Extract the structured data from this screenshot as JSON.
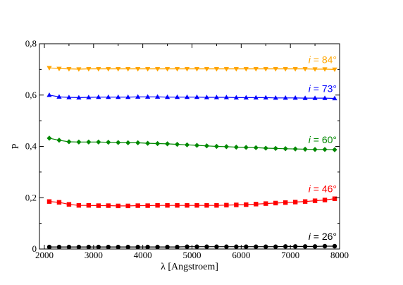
{
  "chart_data": {
    "type": "line",
    "xlabel": "λ [Angstroem]",
    "ylabel": "P",
    "xlim": [
      1900,
      8000
    ],
    "ylim": [
      0,
      0.8
    ],
    "xticks": [
      2000,
      3000,
      4000,
      5000,
      6000,
      7000,
      8000
    ],
    "xtick_labels": [
      "2000",
      "3000",
      "4000",
      "5000",
      "6000",
      "7000",
      "8000"
    ],
    "yticks": [
      0,
      0.2,
      0.4,
      0.6,
      0.8
    ],
    "ytick_labels": [
      "0",
      "0,2",
      "0,4",
      "0,6",
      "0,8"
    ],
    "grid": false,
    "x": [
      2100,
      2300,
      2500,
      2700,
      2900,
      3100,
      3300,
      3500,
      3700,
      3900,
      4100,
      4300,
      4500,
      4700,
      4900,
      5100,
      5300,
      5500,
      5700,
      5900,
      6100,
      6300,
      6500,
      6700,
      6900,
      7100,
      7300,
      7500,
      7700,
      7900
    ],
    "series": [
      {
        "label_var": "i",
        "label_value": " = 84°",
        "color": "#ffa500",
        "marker": "triangle-down",
        "values": [
          0.706,
          0.703,
          0.702,
          0.701,
          0.702,
          0.702,
          0.702,
          0.702,
          0.702,
          0.702,
          0.702,
          0.702,
          0.702,
          0.702,
          0.702,
          0.702,
          0.702,
          0.702,
          0.702,
          0.702,
          0.702,
          0.702,
          0.702,
          0.702,
          0.702,
          0.702,
          0.702,
          0.701,
          0.701,
          0.7
        ]
      },
      {
        "label_var": "i",
        "label_value": " = 73°",
        "color": "#0000ff",
        "marker": "triangle-up",
        "values": [
          0.6,
          0.593,
          0.591,
          0.59,
          0.591,
          0.592,
          0.592,
          0.592,
          0.592,
          0.593,
          0.593,
          0.593,
          0.592,
          0.592,
          0.592,
          0.592,
          0.591,
          0.591,
          0.591,
          0.59,
          0.59,
          0.59,
          0.59,
          0.589,
          0.589,
          0.589,
          0.588,
          0.588,
          0.588,
          0.587
        ]
      },
      {
        "label_var": "i",
        "label_value": " = 60°",
        "color": "#008800",
        "marker": "diamond",
        "values": [
          0.432,
          0.424,
          0.418,
          0.417,
          0.417,
          0.417,
          0.416,
          0.415,
          0.414,
          0.414,
          0.412,
          0.411,
          0.41,
          0.408,
          0.406,
          0.404,
          0.402,
          0.4,
          0.399,
          0.397,
          0.396,
          0.395,
          0.393,
          0.392,
          0.391,
          0.39,
          0.389,
          0.388,
          0.388,
          0.387
        ]
      },
      {
        "label_var": "i",
        "label_value": " = 46°",
        "color": "#ff0000",
        "marker": "square",
        "values": [
          0.185,
          0.182,
          0.174,
          0.17,
          0.17,
          0.169,
          0.169,
          0.168,
          0.168,
          0.169,
          0.169,
          0.17,
          0.17,
          0.17,
          0.17,
          0.17,
          0.17,
          0.17,
          0.171,
          0.172,
          0.173,
          0.175,
          0.177,
          0.179,
          0.181,
          0.183,
          0.185,
          0.188,
          0.191,
          0.196
        ]
      },
      {
        "label_var": "i",
        "label_value": " = 26°",
        "color": "#000000",
        "marker": "circle",
        "values": [
          0.008,
          0.008,
          0.008,
          0.008,
          0.008,
          0.008,
          0.008,
          0.008,
          0.008,
          0.008,
          0.008,
          0.008,
          0.008,
          0.008,
          0.009,
          0.009,
          0.009,
          0.009,
          0.009,
          0.009,
          0.009,
          0.009,
          0.009,
          0.009,
          0.01,
          0.01,
          0.01,
          0.01,
          0.011,
          0.011
        ]
      }
    ]
  }
}
